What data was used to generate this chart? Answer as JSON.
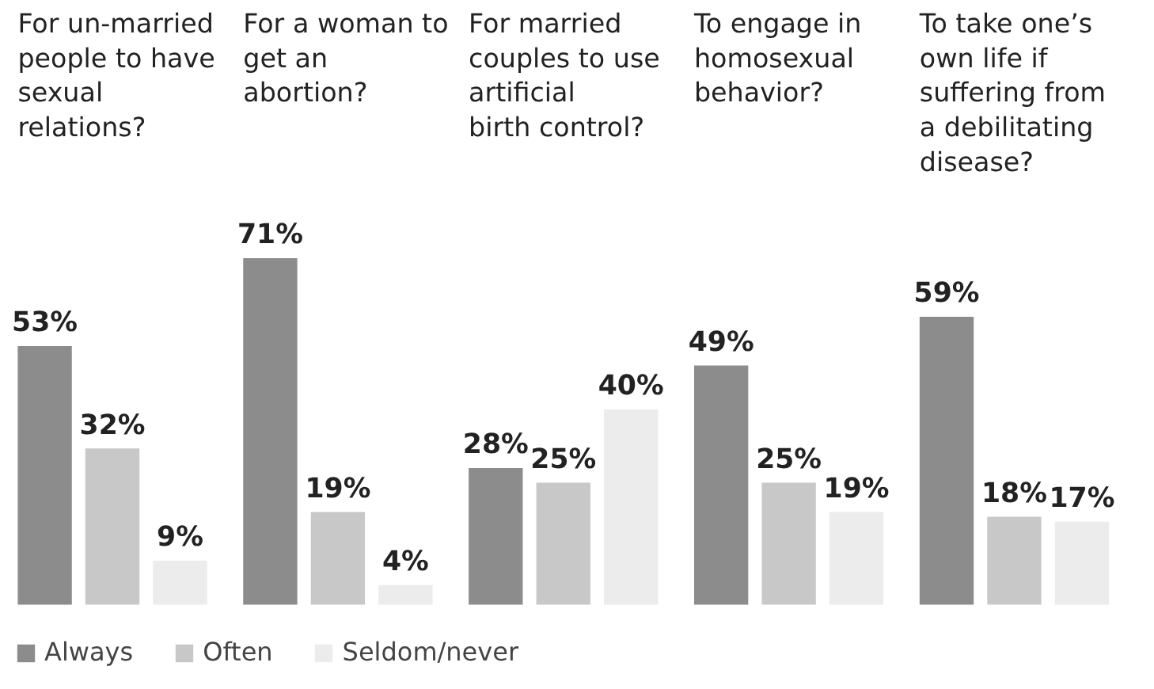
{
  "chart_data": {
    "type": "bar",
    "categories": [
      "For un-married people to have sexual relations?",
      "For a woman to get an abortion?",
      "For married couples to use artificial birth control?",
      "To engage in homosexual behavior?",
      "To take one’s own life if suffering from a debilitating disease?"
    ],
    "series": [
      {
        "name": "Always",
        "color": "#8c8c8c",
        "values": [
          53,
          71,
          28,
          49,
          59
        ],
        "value_labels": [
          "53%",
          "71%",
          "28%",
          "49%",
          "59%"
        ]
      },
      {
        "name": "Often",
        "color": "#c8c8c8",
        "values": [
          32,
          19,
          25,
          25,
          18
        ],
        "value_labels": [
          "32%",
          "19%",
          "25%",
          "25%",
          "18%"
        ]
      },
      {
        "name": "Seldom/never",
        "color": "#ececec",
        "values": [
          9,
          4,
          40,
          19,
          17
        ],
        "value_labels": [
          "9%",
          "4%",
          "40%",
          "19%",
          "17%"
        ]
      }
    ],
    "legend": "bottom",
    "grid": false
  }
}
